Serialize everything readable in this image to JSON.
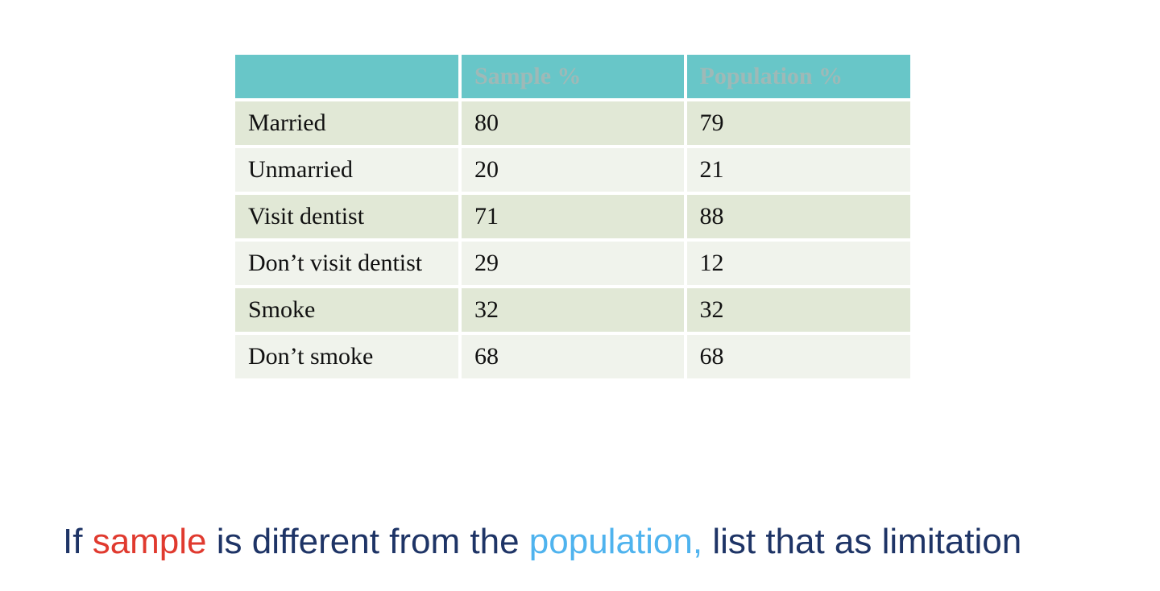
{
  "table": {
    "headers": [
      "",
      "Sample %",
      "Population %"
    ],
    "rows": [
      {
        "label": "Married",
        "sample": "80",
        "population": "79"
      },
      {
        "label": "Unmarried",
        "sample": "20",
        "population": "21"
      },
      {
        "label": "Visit dentist",
        "sample": "71",
        "population": "88"
      },
      {
        "label": "Don’t visit dentist",
        "sample": "29",
        "population": "12"
      },
      {
        "label": "Smoke",
        "sample": "32",
        "population": "32"
      },
      {
        "label": "Don’t smoke",
        "sample": "68",
        "population": "68"
      }
    ]
  },
  "caption": {
    "part1": "If ",
    "sample_word": "sample",
    "part2": " is different from the ",
    "population_word": "population,",
    "part3": " list that as limitation"
  },
  "colors": {
    "header_bg": "#68c6c8",
    "row_odd_bg": "#e1e8d6",
    "row_even_bg": "#f0f3ec",
    "caption_text": "#1e3466",
    "sample_accent": "#e03a2f",
    "population_accent": "#4fb3ee"
  }
}
